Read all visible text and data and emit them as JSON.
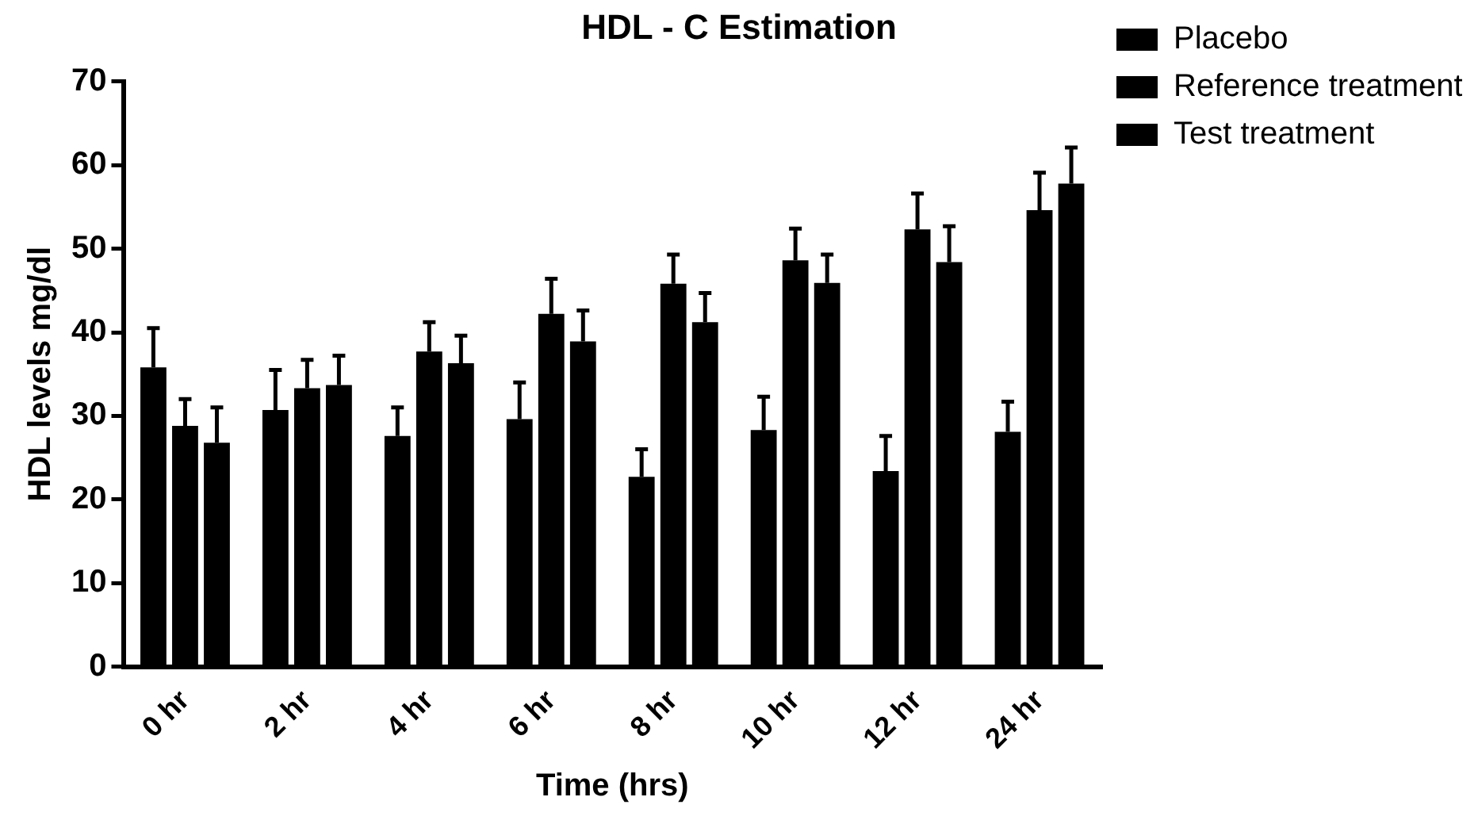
{
  "chart_data": {
    "type": "bar",
    "title": "HDL - C Estimation",
    "xlabel": "Time (hrs)",
    "ylabel": "HDL levels mg/dl",
    "categories": [
      "0 hr",
      "2 hr",
      "4 hr",
      "6 hr",
      "8 hr",
      "10 hr",
      "12 hr",
      "24 hr"
    ],
    "series": [
      {
        "name": "Placebo",
        "color": "#000000",
        "values": [
          35.8,
          30.7,
          27.6,
          29.6,
          22.7,
          28.3,
          23.4,
          28.1
        ],
        "errors": [
          [
            35.8,
            40.5
          ],
          [
            30.7,
            35.5
          ],
          [
            27.6,
            31
          ],
          [
            29.6,
            34
          ],
          [
            22.7,
            26
          ],
          [
            28.3,
            32.3
          ],
          [
            23.4,
            27.6
          ],
          [
            28.1,
            31.7
          ]
        ]
      },
      {
        "name": "Reference treatment",
        "color": "#000000",
        "values": [
          28.8,
          33.3,
          37.7,
          42.2,
          45.8,
          48.6,
          52.3,
          54.6
        ],
        "errors": [
          [
            28.8,
            32
          ],
          [
            33.3,
            36.7
          ],
          [
            37.7,
            41.2
          ],
          [
            42.2,
            46.4
          ],
          [
            45.8,
            49.3
          ],
          [
            48.6,
            52.4
          ],
          [
            52.3,
            56.6
          ],
          [
            54.6,
            59.1
          ]
        ]
      },
      {
        "name": "Test treatment",
        "color": "#000000",
        "values": [
          26.8,
          33.7,
          36.3,
          38.9,
          41.2,
          45.9,
          48.4,
          57.8
        ],
        "errors": [
          [
            26.8,
            31
          ],
          [
            33.7,
            37.2
          ],
          [
            36.3,
            39.6
          ],
          [
            38.9,
            42.6
          ],
          [
            41.2,
            44.7
          ],
          [
            45.9,
            49.3
          ],
          [
            48.4,
            52.7
          ],
          [
            57.8,
            62.1
          ]
        ]
      }
    ],
    "ylim": [
      0,
      70
    ],
    "yticks": [
      0,
      10,
      20,
      30,
      40,
      50,
      60,
      70
    ],
    "grid": false,
    "legend": "right"
  }
}
